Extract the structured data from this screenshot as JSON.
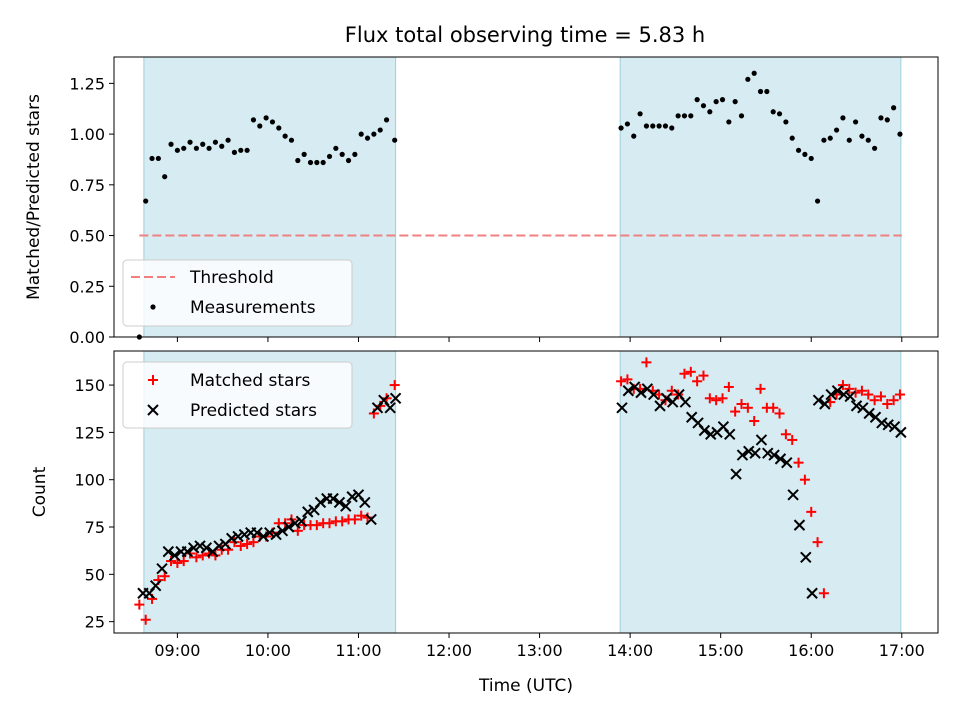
{
  "chart_data": [
    {
      "type": "scatter",
      "title": "Flux total observing time = 5.83 h",
      "xlabel": "",
      "ylabel": "Matched/Predicted stars",
      "xlim": [
        8.3,
        17.4
      ],
      "ylim": [
        0.0,
        1.38
      ],
      "yticks": [
        0.0,
        0.25,
        0.5,
        0.75,
        1.0,
        1.25
      ],
      "ytick_labels": [
        "0.00",
        "0.25",
        "0.50",
        "0.75",
        "1.00",
        "1.25"
      ],
      "shaded_intervals": [
        [
          8.63,
          11.41
        ],
        [
          13.89,
          16.99
        ]
      ],
      "threshold": {
        "value": 0.5,
        "x_range": [
          8.58,
          17.0
        ],
        "name": "Threshold",
        "color": "#f08080"
      },
      "legend_position": "lower-left",
      "series": [
        {
          "name": "Measurements",
          "color": "#000000",
          "marker": "dot",
          "x": [
            8.58,
            8.65,
            8.72,
            8.79,
            8.86,
            8.93,
            9.0,
            9.07,
            9.14,
            9.21,
            9.28,
            9.35,
            9.42,
            9.49,
            9.56,
            9.63,
            9.7,
            9.77,
            9.84,
            9.91,
            9.98,
            10.05,
            10.12,
            10.19,
            10.26,
            10.33,
            10.4,
            10.47,
            10.54,
            10.61,
            10.68,
            10.75,
            10.82,
            10.89,
            10.96,
            11.03,
            11.1,
            11.17,
            11.24,
            11.31,
            11.4,
            13.9,
            13.97,
            14.04,
            14.11,
            14.18,
            14.25,
            14.32,
            14.39,
            14.46,
            14.53,
            14.6,
            14.67,
            14.74,
            14.81,
            14.88,
            14.95,
            15.02,
            15.09,
            15.16,
            15.23,
            15.3,
            15.37,
            15.44,
            15.51,
            15.58,
            15.65,
            15.72,
            15.79,
            15.86,
            15.93,
            16.0,
            16.07,
            16.14,
            16.21,
            16.28,
            16.35,
            16.42,
            16.49,
            16.56,
            16.63,
            16.7,
            16.77,
            16.84,
            16.91,
            16.98
          ],
          "y": [
            0.0,
            0.67,
            0.88,
            0.88,
            0.79,
            0.95,
            0.92,
            0.93,
            0.96,
            0.93,
            0.95,
            0.93,
            0.96,
            0.94,
            0.97,
            0.91,
            0.92,
            0.92,
            1.07,
            1.04,
            1.08,
            1.06,
            1.03,
            0.99,
            0.97,
            0.87,
            0.9,
            0.86,
            0.86,
            0.86,
            0.89,
            0.93,
            0.9,
            0.87,
            0.9,
            1.0,
            0.98,
            1.0,
            1.02,
            1.07,
            0.97,
            1.03,
            1.05,
            0.99,
            1.1,
            1.04,
            1.04,
            1.04,
            1.04,
            1.03,
            1.09,
            1.09,
            1.09,
            1.17,
            1.14,
            1.11,
            1.16,
            1.17,
            1.06,
            1.16,
            1.09,
            1.27,
            1.3,
            1.21,
            1.21,
            1.11,
            1.1,
            1.06,
            0.98,
            0.92,
            0.9,
            0.88,
            0.67,
            0.97,
            0.98,
            1.02,
            1.08,
            0.97,
            1.06,
            0.99,
            0.97,
            0.93,
            1.08,
            1.07,
            1.13,
            1.0
          ]
        }
      ]
    },
    {
      "type": "scatter",
      "title": "",
      "xlabel": "Time (UTC)",
      "ylabel": "Count",
      "xlim": [
        8.3,
        17.4
      ],
      "ylim": [
        19,
        168
      ],
      "yticks": [
        25,
        50,
        75,
        100,
        125,
        150
      ],
      "ytick_labels": [
        "25",
        "50",
        "75",
        "100",
        "125",
        "150"
      ],
      "xticks": [
        9,
        10,
        11,
        12,
        13,
        14,
        15,
        16,
        17
      ],
      "xtick_labels": [
        "09:00",
        "10:00",
        "11:00",
        "12:00",
        "13:00",
        "14:00",
        "15:00",
        "16:00",
        "17:00"
      ],
      "shaded_intervals": [
        [
          8.63,
          11.41
        ],
        [
          13.89,
          16.99
        ]
      ],
      "legend_position": "upper-left",
      "series": [
        {
          "name": "Matched stars",
          "color": "#ff0000",
          "marker": "plus",
          "x": [
            8.58,
            8.65,
            8.72,
            8.79,
            8.86,
            8.93,
            9.0,
            9.07,
            9.14,
            9.21,
            9.28,
            9.35,
            9.42,
            9.49,
            9.56,
            9.63,
            9.7,
            9.77,
            9.84,
            9.91,
            9.98,
            10.05,
            10.12,
            10.19,
            10.26,
            10.33,
            10.4,
            10.47,
            10.54,
            10.61,
            10.68,
            10.75,
            10.82,
            10.89,
            10.96,
            11.03,
            11.1,
            11.17,
            11.24,
            11.31,
            11.4,
            13.9,
            13.97,
            14.04,
            14.11,
            14.18,
            14.25,
            14.32,
            14.39,
            14.46,
            14.53,
            14.6,
            14.67,
            14.74,
            14.81,
            14.88,
            14.95,
            15.02,
            15.09,
            15.16,
            15.23,
            15.3,
            15.37,
            15.44,
            15.51,
            15.58,
            15.65,
            15.72,
            15.79,
            15.86,
            15.93,
            16.0,
            16.07,
            16.14,
            16.21,
            16.28,
            16.35,
            16.42,
            16.49,
            16.56,
            16.63,
            16.7,
            16.77,
            16.84,
            16.91,
            16.98
          ],
          "y": [
            34,
            26,
            37,
            47,
            49,
            57,
            56,
            57,
            61,
            59,
            60,
            61,
            60,
            63,
            63,
            67,
            65,
            66,
            67,
            70,
            70,
            72,
            77,
            77,
            79,
            73,
            76,
            76,
            76,
            77,
            77,
            78,
            78,
            79,
            79,
            81,
            80,
            135,
            139,
            143,
            150,
            152,
            153,
            148,
            148,
            162,
            147,
            145,
            142,
            147,
            145,
            156,
            157,
            152,
            155,
            143,
            142,
            143,
            149,
            136,
            140,
            138,
            131,
            148,
            138,
            138,
            135,
            124,
            121,
            109,
            100,
            83,
            67,
            40,
            141,
            145,
            150,
            148,
            146,
            147,
            145,
            142,
            144,
            140,
            142,
            145
          ],
          "note": ""
        },
        {
          "name": "Predicted stars",
          "color": "#000000",
          "marker": "x",
          "x": [
            8.62,
            8.69,
            8.76,
            8.83,
            8.9,
            8.97,
            9.04,
            9.11,
            9.18,
            9.25,
            9.32,
            9.39,
            9.46,
            9.53,
            9.6,
            9.67,
            9.74,
            9.81,
            9.88,
            9.95,
            10.02,
            10.09,
            10.16,
            10.23,
            10.3,
            10.37,
            10.44,
            10.51,
            10.58,
            10.65,
            10.72,
            10.79,
            10.86,
            10.93,
            11.0,
            11.07,
            11.14,
            11.21,
            11.28,
            11.35,
            11.41,
            13.91,
            13.98,
            14.05,
            14.12,
            14.19,
            14.26,
            14.33,
            14.4,
            14.47,
            14.54,
            14.61,
            14.68,
            14.75,
            14.82,
            14.89,
            14.96,
            15.03,
            15.1,
            15.17,
            15.24,
            15.31,
            15.38,
            15.45,
            15.52,
            15.59,
            15.66,
            15.73,
            15.8,
            15.87,
            15.94,
            16.01,
            16.08,
            16.15,
            16.22,
            16.29,
            16.36,
            16.43,
            16.5,
            16.57,
            16.64,
            16.71,
            16.78,
            16.85,
            16.92,
            16.99
          ],
          "y": [
            40,
            40,
            44,
            53,
            62,
            60,
            62,
            62,
            64,
            65,
            64,
            62,
            65,
            66,
            69,
            70,
            71,
            72,
            72,
            70,
            72,
            71,
            73,
            75,
            77,
            78,
            83,
            84,
            88,
            90,
            90,
            88,
            86,
            91,
            92,
            88,
            79,
            138,
            142,
            138,
            143,
            138,
            147,
            149,
            146,
            148,
            145,
            139,
            143,
            141,
            145,
            141,
            133,
            130,
            126,
            124,
            125,
            128,
            124,
            103,
            113,
            115,
            114,
            121,
            114,
            113,
            111,
            109,
            92,
            76,
            59,
            40,
            142,
            140,
            145,
            147,
            145,
            144,
            139,
            138,
            135,
            133,
            130,
            129,
            128,
            125
          ]
        }
      ]
    }
  ]
}
